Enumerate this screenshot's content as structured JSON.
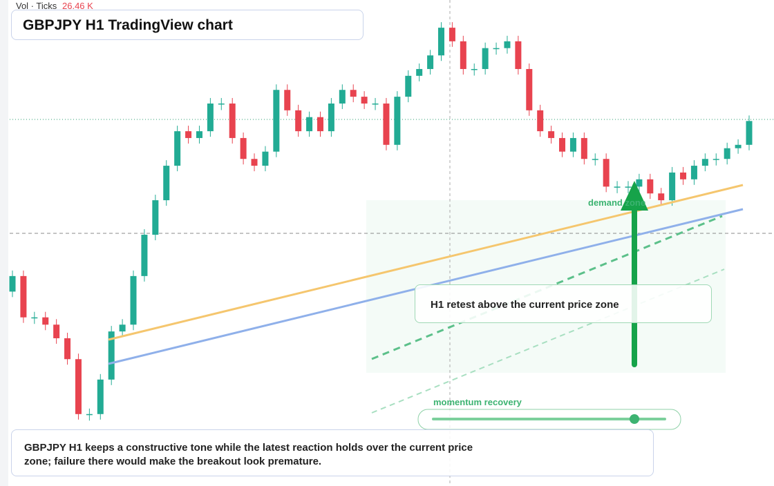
{
  "header": {
    "volume_label": "Vol · Ticks",
    "volume_value": "26.46 K",
    "title": "GBPJPY H1 TradingView chart"
  },
  "chart": {
    "type": "candlestick",
    "ylim": [
      0,
      100
    ],
    "open": [
      40.0,
      43.2,
      34.7,
      34.7,
      33.2,
      30.4,
      26.1,
      14.8,
      14.8,
      21.9,
      31.8,
      33.2,
      43.2,
      51.7,
      58.8,
      65.9,
      73.0,
      71.6,
      73.0,
      78.7,
      78.7,
      71.6,
      67.3,
      65.9,
      68.8,
      81.5,
      77.3,
      73.0,
      75.9,
      73.0,
      78.7,
      81.5,
      80.1,
      78.7,
      78.7,
      70.2,
      80.1,
      84.4,
      85.8,
      88.6,
      94.3,
      91.5,
      85.8,
      85.8,
      90.1,
      90.1,
      91.5,
      85.8,
      77.3,
      73.0,
      71.6,
      68.8,
      71.6,
      67.3,
      67.3,
      61.6,
      61.6,
      61.6,
      63.1,
      60.2,
      58.8,
      64.5,
      63.1,
      65.9,
      67.3,
      67.3,
      69.5,
      70.2
    ],
    "close": [
      43.2,
      34.7,
      34.7,
      33.2,
      30.4,
      26.1,
      14.8,
      14.8,
      21.9,
      31.8,
      33.2,
      43.2,
      51.7,
      58.8,
      65.9,
      73.0,
      71.6,
      73.0,
      78.7,
      78.7,
      71.6,
      67.3,
      65.9,
      68.8,
      81.5,
      77.3,
      73.0,
      75.9,
      73.0,
      78.7,
      81.5,
      80.1,
      78.7,
      78.7,
      70.2,
      80.1,
      84.4,
      85.8,
      88.6,
      94.3,
      91.5,
      85.8,
      85.8,
      90.1,
      90.1,
      91.5,
      85.8,
      77.3,
      73.0,
      71.6,
      68.8,
      71.6,
      67.3,
      67.3,
      61.6,
      61.6,
      61.6,
      63.1,
      60.2,
      58.8,
      64.5,
      63.1,
      65.9,
      67.3,
      67.3,
      69.5,
      70.2,
      75.1
    ],
    "up_color": "#22ab94",
    "down_color": "#e8434f"
  },
  "annotations": {
    "zone_label": "demand zone",
    "callout": "H1 retest above the current price zone",
    "momentum_label": "momentum recovery"
  },
  "caption": "GBPJPY H1 keeps a constructive tone while the latest reaction holds over the current price zone; failure there would make the breakout look premature."
}
